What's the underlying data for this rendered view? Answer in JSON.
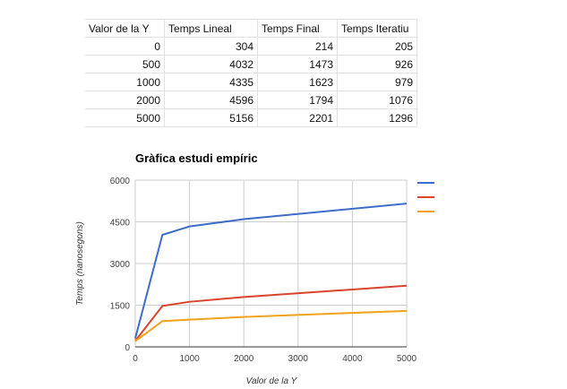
{
  "table": {
    "headers": [
      "Valor de la Y",
      "Temps Lineal",
      "Temps Final",
      "Temps Iteratiu"
    ],
    "rows": [
      [
        "0",
        "304",
        "214",
        "205"
      ],
      [
        "500",
        "4032",
        "1473",
        "926"
      ],
      [
        "1000",
        "4335",
        "1623",
        "979"
      ],
      [
        "2000",
        "4596",
        "1794",
        "1076"
      ],
      [
        "5000",
        "5156",
        "2201",
        "1296"
      ]
    ]
  },
  "chart_data": {
    "type": "line",
    "title": "Gràfica estudi empíric",
    "xlabel": "Valor de la Y",
    "ylabel": "Temps (nanosegons)",
    "x": [
      0,
      500,
      1000,
      2000,
      5000
    ],
    "xlim": [
      0,
      5000
    ],
    "ylim": [
      0,
      6000
    ],
    "x_ticks": [
      0,
      1000,
      2000,
      3000,
      4000,
      5000
    ],
    "y_ticks": [
      0,
      1500,
      3000,
      4500,
      6000
    ],
    "grid": true,
    "legend_position": "top-right",
    "series": [
      {
        "values": [
          304,
          4032,
          4335,
          4596,
          5156
        ],
        "color": "#3c6dcb"
      },
      {
        "values": [
          214,
          1473,
          1623,
          1794,
          2201
        ],
        "color": "#d9442a"
      },
      {
        "values": [
          205,
          926,
          979,
          1076,
          1296
        ],
        "color": "#f2a31b"
      }
    ]
  }
}
